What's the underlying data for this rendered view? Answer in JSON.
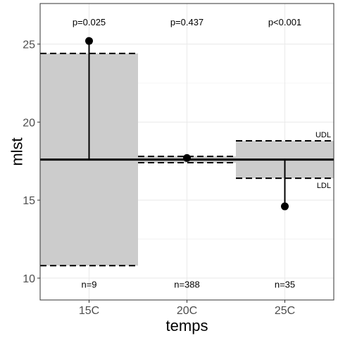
{
  "chart_data": {
    "type": "funnel-limits",
    "xlabel": "temps",
    "ylabel": "mlst",
    "categories": [
      "15C",
      "20C",
      "25C"
    ],
    "y_ticks": [
      10,
      15,
      20,
      25
    ],
    "ylim": [
      8.6,
      27.6
    ],
    "grid": true,
    "center_line": 17.6,
    "groups": [
      {
        "category": "15C",
        "value": 25.2,
        "upper_limit": 24.4,
        "lower_limit": 10.8,
        "p_label": "p=0.025",
        "n_label": "n=9"
      },
      {
        "category": "20C",
        "value": 17.7,
        "upper_limit": 17.8,
        "lower_limit": 17.4,
        "p_label": "p=0.437",
        "n_label": "n=388"
      },
      {
        "category": "25C",
        "value": 14.6,
        "upper_limit": 18.8,
        "lower_limit": 16.4,
        "p_label": "p<0.001",
        "n_label": "n=35"
      }
    ],
    "limit_labels": {
      "upper": "UDL",
      "lower": "LDL"
    },
    "colors": {
      "band": "#cccccc",
      "line": "#000000",
      "grid": "#ebebeb",
      "panel_border": "#333333"
    }
  }
}
